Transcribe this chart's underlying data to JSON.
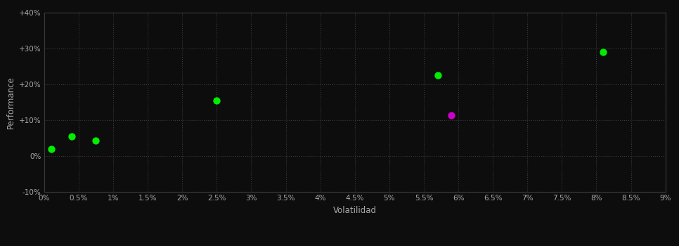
{
  "xlabel": "Volatilidad",
  "ylabel": "Performance",
  "background_color": "#0d0d0d",
  "plot_bg_color": "#0d0d0d",
  "grid_color": "#3a3a3a",
  "text_color": "#aaaaaa",
  "spine_color": "#3a3a3a",
  "xlim": [
    0,
    0.09
  ],
  "ylim": [
    -0.1,
    0.4
  ],
  "xticks": [
    0.0,
    0.005,
    0.01,
    0.015,
    0.02,
    0.025,
    0.03,
    0.035,
    0.04,
    0.045,
    0.05,
    0.055,
    0.06,
    0.065,
    0.07,
    0.075,
    0.08,
    0.085,
    0.09
  ],
  "yticks": [
    -0.1,
    0.0,
    0.1,
    0.2,
    0.3,
    0.4
  ],
  "ytick_labels": [
    "-10%",
    "0%",
    "+10%",
    "+20%",
    "+30%",
    "+40%"
  ],
  "xtick_labels": [
    "0%",
    "0.5%",
    "1%",
    "1.5%",
    "2%",
    "2.5%",
    "3%",
    "3.5%",
    "4%",
    "4.5%",
    "5%",
    "5.5%",
    "6%",
    "6.5%",
    "7%",
    "7.5%",
    "8%",
    "8.5%",
    "9%"
  ],
  "green_points": [
    [
      0.001,
      0.02
    ],
    [
      0.004,
      0.055
    ],
    [
      0.0075,
      0.042
    ],
    [
      0.025,
      0.155
    ],
    [
      0.057,
      0.225
    ],
    [
      0.081,
      0.29
    ]
  ],
  "magenta_points": [
    [
      0.059,
      0.113
    ]
  ],
  "green_color": "#00ee00",
  "magenta_color": "#cc00cc",
  "marker_size": 55
}
